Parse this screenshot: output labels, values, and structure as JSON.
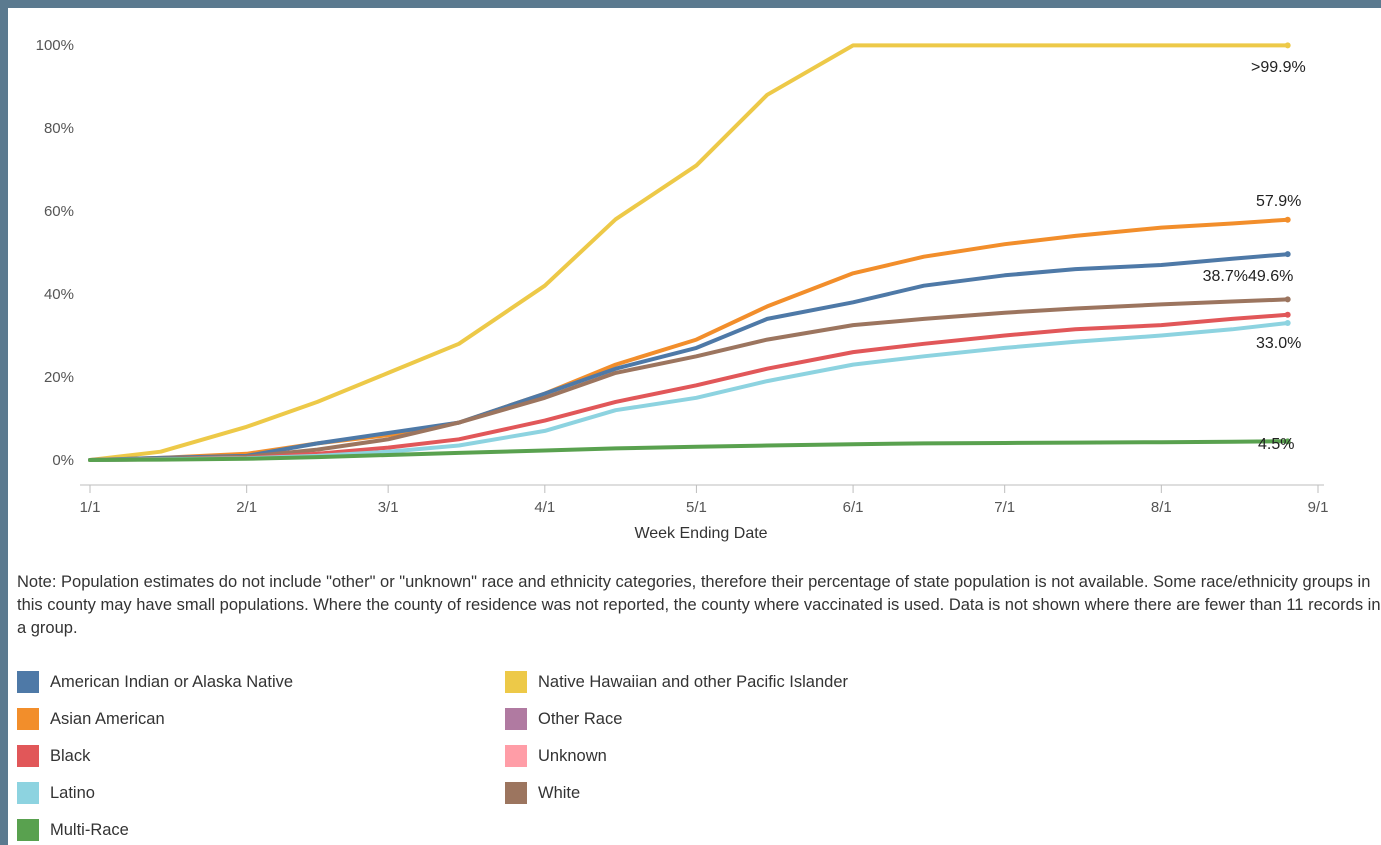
{
  "note": "Note: Population estimates do not include \"other\" or \"unknown\" race and ethnicity categories, therefore their percentage of state population is not available. Some race/ethnicity groups in this county may have small populations. Where the county of residence was not reported, the county where vaccinated is used. Data is not shown where there are fewer than 11 records in a group.",
  "legend": [
    {
      "label": "American Indian or Alaska Native",
      "color": "#4e79a7"
    },
    {
      "label": "Asian American",
      "color": "#f28e2b"
    },
    {
      "label": "Black",
      "color": "#e15759"
    },
    {
      "label": "Latino",
      "color": "#8dd3e0"
    },
    {
      "label": "Multi-Race",
      "color": "#59a14f"
    },
    {
      "label": "Native Hawaiian and other Pacific Islander",
      "color": "#edc948"
    },
    {
      "label": "Other Race",
      "color": "#b07aa1"
    },
    {
      "label": "Unknown",
      "color": "#ff9da7"
    },
    {
      "label": "White",
      "color": "#9c755f"
    }
  ],
  "chart_data": {
    "type": "line",
    "title": "",
    "xlabel": "Week Ending Date",
    "ylabel": "",
    "x_ticks": [
      "1/1",
      "2/1",
      "3/1",
      "4/1",
      "5/1",
      "6/1",
      "7/1",
      "8/1",
      "9/1"
    ],
    "y_ticks": [
      "0%",
      "20%",
      "40%",
      "60%",
      "80%",
      "100%"
    ],
    "ylim": [
      0,
      100
    ],
    "xlim": [
      "1/1",
      "9/1"
    ],
    "grid": false,
    "end_labels": [
      ">99.9%",
      "57.9%",
      "49.6%",
      "38.7%",
      "33.0%",
      "4.5%"
    ],
    "series": [
      {
        "name": "Native Hawaiian and other Pacific Islander",
        "color": "#edc948",
        "x": [
          "1/1",
          "1/15",
          "2/1",
          "2/15",
          "3/1",
          "3/15",
          "4/1",
          "4/15",
          "5/1",
          "5/15",
          "6/1",
          "6/15",
          "7/1",
          "7/15",
          "8/1",
          "8/15",
          "8/26"
        ],
        "y": [
          0,
          2,
          8,
          14,
          21,
          28,
          42,
          58,
          71,
          88,
          99.9,
          99.9,
          99.9,
          99.9,
          99.9,
          99.9,
          99.9
        ]
      },
      {
        "name": "Asian American",
        "color": "#f28e2b",
        "x": [
          "1/1",
          "1/15",
          "2/1",
          "2/15",
          "3/1",
          "3/15",
          "4/1",
          "4/15",
          "5/1",
          "5/15",
          "6/1",
          "6/15",
          "7/1",
          "7/15",
          "8/1",
          "8/15",
          "8/26"
        ],
        "y": [
          0,
          0.5,
          1.5,
          4,
          6,
          9,
          16,
          23,
          29,
          37,
          45,
          49,
          52,
          54,
          56,
          57,
          57.9
        ]
      },
      {
        "name": "American Indian or Alaska Native",
        "color": "#4e79a7",
        "x": [
          "1/1",
          "1/15",
          "2/1",
          "2/15",
          "3/1",
          "3/15",
          "4/1",
          "4/15",
          "5/1",
          "5/15",
          "6/1",
          "6/15",
          "7/1",
          "7/15",
          "8/1",
          "8/15",
          "8/26"
        ],
        "y": [
          0,
          0.5,
          1,
          4,
          6.5,
          9,
          16,
          22,
          27,
          34,
          38,
          42,
          44.5,
          46,
          47,
          48.5,
          49.6
        ]
      },
      {
        "name": "White",
        "color": "#9c755f",
        "x": [
          "1/1",
          "1/15",
          "2/1",
          "2/15",
          "3/1",
          "3/15",
          "4/1",
          "4/15",
          "5/1",
          "5/15",
          "6/1",
          "6/15",
          "7/1",
          "7/15",
          "8/1",
          "8/15",
          "8/26"
        ],
        "y": [
          0,
          0.3,
          0.8,
          2.5,
          5,
          9,
          15,
          21,
          25,
          29,
          32.5,
          34,
          35.5,
          36.5,
          37.5,
          38.2,
          38.7
        ]
      },
      {
        "name": "Black",
        "color": "#e15759",
        "x": [
          "1/1",
          "1/15",
          "2/1",
          "2/15",
          "3/1",
          "3/15",
          "4/1",
          "4/15",
          "5/1",
          "5/15",
          "6/1",
          "6/15",
          "7/1",
          "7/15",
          "8/1",
          "8/15",
          "8/26"
        ],
        "y": [
          0,
          0.2,
          0.5,
          1.5,
          3,
          5,
          9.5,
          14,
          18,
          22,
          26,
          28,
          30,
          31.5,
          32.5,
          34,
          35
        ]
      },
      {
        "name": "Latino",
        "color": "#8dd3e0",
        "x": [
          "1/1",
          "1/15",
          "2/1",
          "2/15",
          "3/1",
          "3/15",
          "4/1",
          "4/15",
          "5/1",
          "5/15",
          "6/1",
          "6/15",
          "7/1",
          "7/15",
          "8/1",
          "8/15",
          "8/26"
        ],
        "y": [
          0,
          0.2,
          0.4,
          1,
          2,
          3.5,
          7,
          12,
          15,
          19,
          23,
          25,
          27,
          28.5,
          30,
          31.5,
          33.0
        ]
      },
      {
        "name": "Multi-Race",
        "color": "#59a14f",
        "x": [
          "1/1",
          "1/15",
          "2/1",
          "2/15",
          "3/1",
          "3/15",
          "4/1",
          "4/15",
          "5/1",
          "5/15",
          "6/1",
          "6/15",
          "7/1",
          "7/15",
          "8/1",
          "8/15",
          "8/26"
        ],
        "y": [
          0,
          0.1,
          0.3,
          0.7,
          1.2,
          1.7,
          2.3,
          2.8,
          3.2,
          3.5,
          3.8,
          4.0,
          4.1,
          4.2,
          4.3,
          4.4,
          4.5
        ]
      }
    ]
  }
}
